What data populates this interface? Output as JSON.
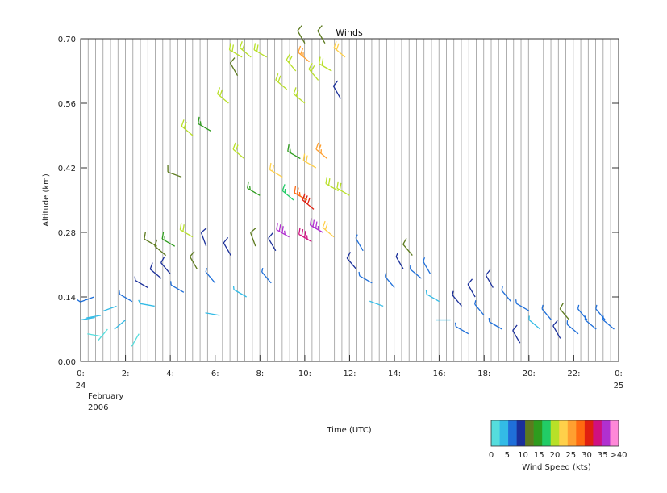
{
  "chart_data": {
    "type": "wind-barb",
    "title": "Winds",
    "xlabel": "Time (UTC)",
    "ylabel": "Altitude (km)",
    "date_lines": [
      "February",
      "2006"
    ],
    "x_ticks": [
      {
        "hour": 0,
        "top": "0:",
        "bottom": "24"
      },
      {
        "hour": 2,
        "top": "2:"
      },
      {
        "hour": 4,
        "top": "4:"
      },
      {
        "hour": 6,
        "top": "6:"
      },
      {
        "hour": 8,
        "top": "8:"
      },
      {
        "hour": 10,
        "top": "10:"
      },
      {
        "hour": 12,
        "top": "12:"
      },
      {
        "hour": 14,
        "top": "14:"
      },
      {
        "hour": 16,
        "top": "16:"
      },
      {
        "hour": 18,
        "top": "18:"
      },
      {
        "hour": 20,
        "top": "20:"
      },
      {
        "hour": 22,
        "top": "22:"
      },
      {
        "hour": 24,
        "top": "0:",
        "bottom": "25"
      }
    ],
    "y_ticks": [
      "0.00",
      "0.14",
      "0.28",
      "0.42",
      "0.56",
      "0.70"
    ],
    "xlim": [
      0,
      24
    ],
    "ylim": [
      0,
      0.7
    ],
    "profile_interval_hours": 0.333,
    "colorbar": {
      "label": "Wind Speed (kts)",
      "tick_labels": [
        "0",
        "5",
        "10",
        "15",
        "20",
        "25",
        "30",
        "35",
        ">40"
      ],
      "colors": [
        "#55dddd",
        "#33bbe6",
        "#1f6fd9",
        "#1a2f9a",
        "#5c7a1e",
        "#2e9c1e",
        "#22cc66",
        "#b8e028",
        "#ffd04a",
        "#ffa030",
        "#ff6a10",
        "#e02010",
        "#d01080",
        "#b030d0",
        "#ff88d8"
      ]
    },
    "barbs": [
      {
        "t": 0.0,
        "alt": 0.09,
        "spd": 3,
        "dir": 80
      },
      {
        "t": 0.3,
        "alt": 0.06,
        "spd": 2,
        "dir": 100
      },
      {
        "t": 0.6,
        "alt": 0.14,
        "spd": 6,
        "dir": 250
      },
      {
        "t": 0.9,
        "alt": 0.1,
        "spd": 3,
        "dir": 260
      },
      {
        "t": 1.2,
        "alt": 0.07,
        "spd": 2,
        "dir": 220
      },
      {
        "t": 1.6,
        "alt": 0.12,
        "spd": 4,
        "dir": 250
      },
      {
        "t": 2.0,
        "alt": 0.09,
        "spd": 3,
        "dir": 230
      },
      {
        "t": 2.3,
        "alt": 0.13,
        "spd": 6,
        "dir": 300
      },
      {
        "t": 2.6,
        "alt": 0.06,
        "spd": 2,
        "dir": 210
      },
      {
        "t": 3.0,
        "alt": 0.16,
        "spd": 9,
        "dir": 300
      },
      {
        "t": 3.3,
        "alt": 0.12,
        "spd": 5,
        "dir": 280
      },
      {
        "t": 3.6,
        "alt": 0.18,
        "spd": 11,
        "dir": 310
      },
      {
        "t": 3.4,
        "alt": 0.25,
        "spd": 14,
        "dir": 300
      },
      {
        "t": 3.8,
        "alt": 0.23,
        "spd": 13,
        "dir": 310
      },
      {
        "t": 4.2,
        "alt": 0.25,
        "spd": 15,
        "dir": 300
      },
      {
        "t": 4.5,
        "alt": 0.4,
        "spd": 12,
        "dir": 290
      },
      {
        "t": 4.0,
        "alt": 0.19,
        "spd": 11,
        "dir": 320
      },
      {
        "t": 4.6,
        "alt": 0.15,
        "spd": 7,
        "dir": 300
      },
      {
        "t": 5.0,
        "alt": 0.27,
        "spd": 22,
        "dir": 300
      },
      {
        "t": 5.0,
        "alt": 0.49,
        "spd": 21,
        "dir": 310
      },
      {
        "t": 5.2,
        "alt": 0.2,
        "spd": 12,
        "dir": 330
      },
      {
        "t": 5.6,
        "alt": 0.25,
        "spd": 10,
        "dir": 340
      },
      {
        "t": 5.8,
        "alt": 0.5,
        "spd": 15,
        "dir": 300
      },
      {
        "t": 6.0,
        "alt": 0.17,
        "spd": 6,
        "dir": 320
      },
      {
        "t": 6.2,
        "alt": 0.1,
        "spd": 4,
        "dir": 280
      },
      {
        "t": 6.6,
        "alt": 0.56,
        "spd": 21,
        "dir": 310
      },
      {
        "t": 6.7,
        "alt": 0.23,
        "spd": 11,
        "dir": 330
      },
      {
        "t": 7.0,
        "alt": 0.62,
        "spd": 14,
        "dir": 330
      },
      {
        "t": 7.2,
        "alt": 0.66,
        "spd": 20,
        "dir": 300
      },
      {
        "t": 7.3,
        "alt": 0.44,
        "spd": 22,
        "dir": 310
      },
      {
        "t": 7.4,
        "alt": 0.14,
        "spd": 5,
        "dir": 300
      },
      {
        "t": 7.6,
        "alt": 0.66,
        "spd": 21,
        "dir": 310
      },
      {
        "t": 7.8,
        "alt": 0.25,
        "spd": 12,
        "dir": 340
      },
      {
        "t": 8.0,
        "alt": 0.36,
        "spd": 17,
        "dir": 300
      },
      {
        "t": 8.3,
        "alt": 0.66,
        "spd": 21,
        "dir": 300
      },
      {
        "t": 8.5,
        "alt": 0.17,
        "spd": 7,
        "dir": 320
      },
      {
        "t": 8.7,
        "alt": 0.24,
        "spd": 11,
        "dir": 330
      },
      {
        "t": 9.0,
        "alt": 0.4,
        "spd": 24,
        "dir": 300
      },
      {
        "t": 9.2,
        "alt": 0.59,
        "spd": 22,
        "dir": 310
      },
      {
        "t": 9.3,
        "alt": 0.27,
        "spd": 38,
        "dir": 300
      },
      {
        "t": 9.5,
        "alt": 0.35,
        "spd": 18,
        "dir": 310
      },
      {
        "t": 9.6,
        "alt": 0.63,
        "spd": 22,
        "dir": 320
      },
      {
        "t": 9.8,
        "alt": 0.44,
        "spd": 16,
        "dir": 300
      },
      {
        "t": 10.0,
        "alt": 0.69,
        "spd": 14,
        "dir": 330
      },
      {
        "t": 10.0,
        "alt": 0.56,
        "spd": 21,
        "dir": 310
      },
      {
        "t": 10.1,
        "alt": 0.35,
        "spd": 29,
        "dir": 300
      },
      {
        "t": 10.2,
        "alt": 0.65,
        "spd": 27,
        "dir": 310
      },
      {
        "t": 10.3,
        "alt": 0.26,
        "spd": 36,
        "dir": 300
      },
      {
        "t": 10.4,
        "alt": 0.33,
        "spd": 33,
        "dir": 310
      },
      {
        "t": 10.5,
        "alt": 0.42,
        "spd": 23,
        "dir": 300
      },
      {
        "t": 10.6,
        "alt": 0.61,
        "spd": 21,
        "dir": 320
      },
      {
        "t": 10.8,
        "alt": 0.28,
        "spd": 38,
        "dir": 300
      },
      {
        "t": 10.9,
        "alt": 0.69,
        "spd": 13,
        "dir": 330
      },
      {
        "t": 11.0,
        "alt": 0.44,
        "spd": 26,
        "dir": 310
      },
      {
        "t": 11.2,
        "alt": 0.63,
        "spd": 21,
        "dir": 300
      },
      {
        "t": 11.3,
        "alt": 0.27,
        "spd": 24,
        "dir": 310
      },
      {
        "t": 11.5,
        "alt": 0.37,
        "spd": 20,
        "dir": 300
      },
      {
        "t": 11.6,
        "alt": 0.57,
        "spd": 10,
        "dir": 330
      },
      {
        "t": 11.8,
        "alt": 0.66,
        "spd": 24,
        "dir": 310
      },
      {
        "t": 12.0,
        "alt": 0.36,
        "spd": 21,
        "dir": 300
      },
      {
        "t": 12.3,
        "alt": 0.2,
        "spd": 10,
        "dir": 320
      },
      {
        "t": 12.6,
        "alt": 0.24,
        "spd": 8,
        "dir": 330
      },
      {
        "t": 13.0,
        "alt": 0.17,
        "spd": 7,
        "dir": 300
      },
      {
        "t": 13.5,
        "alt": 0.12,
        "spd": 4,
        "dir": 290
      },
      {
        "t": 14.0,
        "alt": 0.16,
        "spd": 8,
        "dir": 320
      },
      {
        "t": 14.4,
        "alt": 0.2,
        "spd": 9,
        "dir": 330
      },
      {
        "t": 14.8,
        "alt": 0.23,
        "spd": 14,
        "dir": 320
      },
      {
        "t": 15.2,
        "alt": 0.18,
        "spd": 8,
        "dir": 310
      },
      {
        "t": 15.6,
        "alt": 0.19,
        "spd": 7,
        "dir": 330
      },
      {
        "t": 16.0,
        "alt": 0.13,
        "spd": 5,
        "dir": 300
      },
      {
        "t": 16.5,
        "alt": 0.09,
        "spd": 3,
        "dir": 270
      },
      {
        "t": 17.0,
        "alt": 0.12,
        "spd": 9,
        "dir": 320
      },
      {
        "t": 17.3,
        "alt": 0.06,
        "spd": 7,
        "dir": 300
      },
      {
        "t": 17.6,
        "alt": 0.14,
        "spd": 11,
        "dir": 330
      },
      {
        "t": 18.0,
        "alt": 0.1,
        "spd": 8,
        "dir": 320
      },
      {
        "t": 18.4,
        "alt": 0.16,
        "spd": 10,
        "dir": 330
      },
      {
        "t": 18.8,
        "alt": 0.07,
        "spd": 6,
        "dir": 300
      },
      {
        "t": 19.2,
        "alt": 0.13,
        "spd": 8,
        "dir": 320
      },
      {
        "t": 19.6,
        "alt": 0.04,
        "spd": 10,
        "dir": 330
      },
      {
        "t": 20.0,
        "alt": 0.11,
        "spd": 6,
        "dir": 300
      },
      {
        "t": 20.5,
        "alt": 0.07,
        "spd": 5,
        "dir": 310
      },
      {
        "t": 21.0,
        "alt": 0.09,
        "spd": 7,
        "dir": 320
      },
      {
        "t": 21.4,
        "alt": 0.05,
        "spd": 10,
        "dir": 330
      },
      {
        "t": 21.8,
        "alt": 0.09,
        "spd": 14,
        "dir": 320
      },
      {
        "t": 22.2,
        "alt": 0.06,
        "spd": 7,
        "dir": 310
      },
      {
        "t": 22.6,
        "alt": 0.09,
        "spd": 8,
        "dir": 320
      },
      {
        "t": 23.0,
        "alt": 0.07,
        "spd": 6,
        "dir": 310
      },
      {
        "t": 23.4,
        "alt": 0.09,
        "spd": 8,
        "dir": 320
      },
      {
        "t": 23.8,
        "alt": 0.07,
        "spd": 7,
        "dir": 310
      }
    ]
  }
}
